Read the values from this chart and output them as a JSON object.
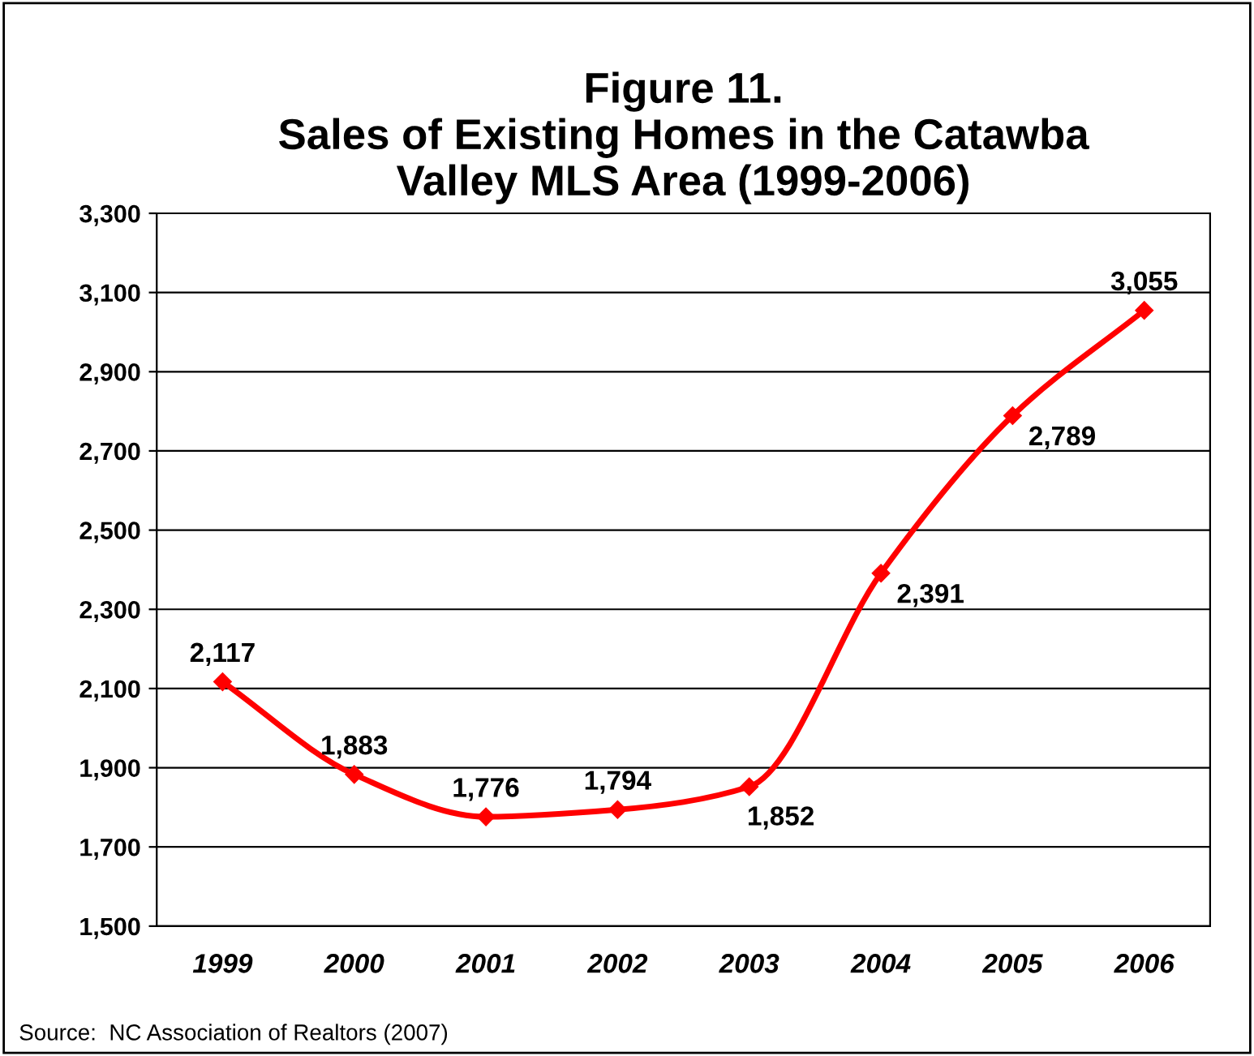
{
  "chart_data": {
    "type": "line",
    "title": "Figure 11.\nSales of Existing Homes in the Catawba\nValley MLS Area (1999-2006)",
    "categories": [
      "1999",
      "2000",
      "2001",
      "2002",
      "2003",
      "2004",
      "2005",
      "2006"
    ],
    "series": [
      {
        "color": "#ff0000",
        "values": [
          2117,
          1883,
          1776,
          1794,
          1852,
          2391,
          2789,
          3055
        ]
      }
    ],
    "ylim": [
      1500,
      3300
    ],
    "yticks": [
      {
        "value": 1500,
        "label": "1,500"
      },
      {
        "value": 1700,
        "label": "1,700"
      },
      {
        "value": 1900,
        "label": "1,900"
      },
      {
        "value": 2100,
        "label": "2,100"
      },
      {
        "value": 2300,
        "label": "2,300"
      },
      {
        "value": 2500,
        "label": "2,500"
      },
      {
        "value": 2700,
        "label": "2,700"
      },
      {
        "value": 2900,
        "label": "2,900"
      },
      {
        "value": 3100,
        "label": "3,100"
      },
      {
        "value": 3300,
        "label": "3,300"
      }
    ],
    "grid": "y",
    "marker": "diamond",
    "line_style": "solid",
    "value_labels": [
      "2,117",
      "1,883",
      "1,776",
      "1,794",
      "1,852",
      "2,391",
      "2,789",
      "3,055"
    ],
    "annotations": [
      "Source:  NC Association of Realtors (2007)"
    ]
  }
}
